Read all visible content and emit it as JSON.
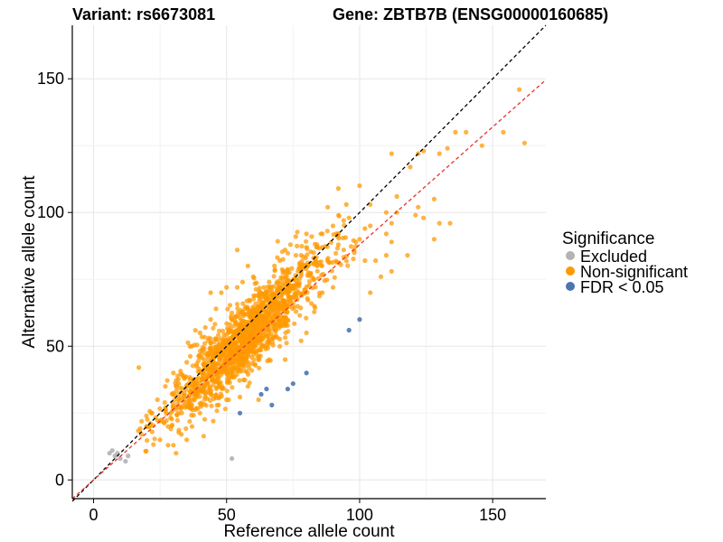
{
  "chart_data": {
    "type": "scatter",
    "title_left": "Variant: rs6673081",
    "title_right": "Gene: ZBTB7B (ENSG00000160685)",
    "xlabel": "Reference allele count",
    "ylabel": "Alternative allele count",
    "xlim": [
      -8,
      170
    ],
    "ylim": [
      -7,
      170
    ],
    "xticks": [
      0,
      50,
      100,
      150
    ],
    "yticks": [
      0,
      50,
      100,
      150
    ],
    "grid": true,
    "legend": {
      "title": "Significance",
      "position": "right",
      "entries": [
        {
          "label": "Excluded",
          "color": "#b3b3b3"
        },
        {
          "label": "Non-significant",
          "color": "#ff9900"
        },
        {
          "label": "FDR < 0.05",
          "color": "#4a77b0"
        }
      ]
    },
    "reference_lines": [
      {
        "name": "identity",
        "slope": 1.0,
        "intercept": 0,
        "color": "#000000",
        "dash": "dashed"
      },
      {
        "name": "fit",
        "slope": 0.88,
        "intercept": 0,
        "color": "#e8322a",
        "dash": "dashed"
      }
    ],
    "series": [
      {
        "group": "Excluded",
        "color": "#b3b3b3",
        "points": [
          [
            6,
            10
          ],
          [
            7,
            11
          ],
          [
            8,
            9
          ],
          [
            9,
            10
          ],
          [
            10,
            8
          ],
          [
            12,
            7
          ],
          [
            13,
            9
          ],
          [
            52,
            8
          ]
        ]
      },
      {
        "group": "FDR < 0.05",
        "color": "#4a77b0",
        "points": [
          [
            55,
            25
          ],
          [
            63,
            32
          ],
          [
            65,
            34
          ],
          [
            67,
            28
          ],
          [
            73,
            34
          ],
          [
            75,
            36
          ],
          [
            80,
            40
          ],
          [
            96,
            56
          ],
          [
            100,
            60
          ]
        ]
      },
      {
        "group": "Non-significant",
        "color": "#ff9900",
        "generated": true,
        "count": 1500,
        "sparse_points": [
          [
            160,
            146
          ],
          [
            154,
            130
          ],
          [
            146,
            125
          ],
          [
            162,
            126
          ],
          [
            140,
            130
          ],
          [
            136,
            130
          ],
          [
            133,
            124
          ],
          [
            122,
            122
          ],
          [
            124,
            123
          ],
          [
            112,
            122
          ],
          [
            119,
            117
          ],
          [
            130,
            122
          ],
          [
            104,
            103
          ],
          [
            114,
            106
          ],
          [
            100,
            110
          ],
          [
            114,
            100
          ],
          [
            128,
            105
          ],
          [
            121,
            99
          ],
          [
            122,
            102
          ],
          [
            134,
            96
          ],
          [
            128,
            90
          ],
          [
            130,
            96
          ],
          [
            124,
            98
          ],
          [
            112,
            78
          ],
          [
            110,
            84
          ],
          [
            112,
            89
          ],
          [
            118,
            84
          ],
          [
            110,
            100
          ],
          [
            104,
            95
          ],
          [
            100,
            90
          ],
          [
            98,
            86
          ],
          [
            92,
            109
          ],
          [
            94,
            97
          ],
          [
            95,
            103
          ],
          [
            106,
            82
          ],
          [
            102,
            94
          ],
          [
            96,
            98
          ],
          [
            88,
            102
          ],
          [
            90,
            95
          ],
          [
            86,
            92
          ],
          [
            84,
            80
          ],
          [
            86,
            87
          ],
          [
            80,
            92
          ],
          [
            82,
            91
          ],
          [
            78,
            78
          ],
          [
            98,
            85
          ],
          [
            92,
            88
          ],
          [
            108,
            76
          ],
          [
            104,
            70
          ],
          [
            102,
            82
          ],
          [
            94,
            86
          ],
          [
            80,
            87
          ],
          [
            84,
            88
          ],
          [
            110,
            92
          ],
          [
            112,
            96
          ],
          [
            17,
            42
          ],
          [
            18,
            17
          ],
          [
            20,
            20
          ],
          [
            22,
            25
          ],
          [
            22,
            18
          ],
          [
            24,
            30
          ],
          [
            25,
            22
          ],
          [
            25,
            15
          ],
          [
            27,
            27
          ],
          [
            27,
            35
          ],
          [
            28,
            20
          ],
          [
            29,
            25
          ],
          [
            30,
            13
          ],
          [
            30,
            40
          ],
          [
            32,
            36
          ],
          [
            32,
            25
          ],
          [
            33,
            17
          ],
          [
            35,
            44
          ],
          [
            35,
            35
          ],
          [
            36,
            27
          ],
          [
            37,
            50
          ],
          [
            38,
            30
          ],
          [
            40,
            46
          ],
          [
            40,
            55
          ],
          [
            42,
            38
          ],
          [
            42,
            57
          ],
          [
            44,
            60
          ],
          [
            44,
            70
          ],
          [
            46,
            64
          ],
          [
            48,
            70
          ],
          [
            50,
            72
          ],
          [
            52,
            60
          ],
          [
            54,
            72
          ],
          [
            54,
            86
          ],
          [
            56,
            74
          ],
          [
            58,
            80
          ],
          [
            60,
            76
          ],
          [
            62,
            64
          ],
          [
            64,
            72
          ],
          [
            66,
            74
          ],
          [
            68,
            80
          ],
          [
            70,
            82
          ],
          [
            72,
            86
          ],
          [
            74,
            88
          ],
          [
            76,
            91
          ],
          [
            78,
            84
          ],
          [
            55,
            31
          ],
          [
            58,
            35
          ],
          [
            62,
            30
          ],
          [
            45,
            22
          ],
          [
            40,
            25
          ],
          [
            37,
            20
          ],
          [
            35,
            15
          ],
          [
            31,
            10
          ],
          [
            28,
            13
          ],
          [
            50,
            30
          ],
          [
            47,
            28
          ],
          [
            70,
            50
          ],
          [
            72,
            45
          ],
          [
            66,
            45
          ],
          [
            78,
            52
          ],
          [
            80,
            55
          ],
          [
            83,
            65
          ],
          [
            86,
            70
          ],
          [
            90,
            72
          ]
        ]
      }
    ]
  }
}
